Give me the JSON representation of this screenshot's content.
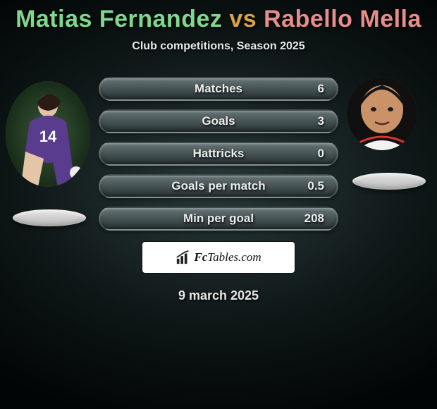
{
  "title": {
    "p1": "Matias Fernandez",
    "vs": "vs",
    "p2": "Rabello Mella"
  },
  "title_colors": {
    "p1": "#7fd88c",
    "vs": "#d8a24a",
    "p2": "#e98c8c"
  },
  "subtitle": "Club competitions, Season 2025",
  "stats": [
    {
      "label": "Matches",
      "value": "6"
    },
    {
      "label": "Goals",
      "value": "3"
    },
    {
      "label": "Hattricks",
      "value": "0"
    },
    {
      "label": "Goals per match",
      "value": "0.5"
    },
    {
      "label": "Min per goal",
      "value": "208"
    }
  ],
  "badge": {
    "brand_bold": "Fc",
    "brand_rest": "Tables.com"
  },
  "date": "9 march 2025",
  "style": {
    "pill_gradient_top": "#7b888a",
    "pill_gradient_bottom": "#232d2f",
    "pill_text": "#ececec",
    "background_center": "#2a3a3a",
    "background_edge": "#020505",
    "shadow_pill": "#e8e8e8"
  },
  "players": {
    "left": {
      "name": "Matias Fernandez",
      "jersey_color": "#5a3c8f"
    },
    "right": {
      "name": "Rabello Mella",
      "jersey_color": "#f2f2f2"
    }
  }
}
